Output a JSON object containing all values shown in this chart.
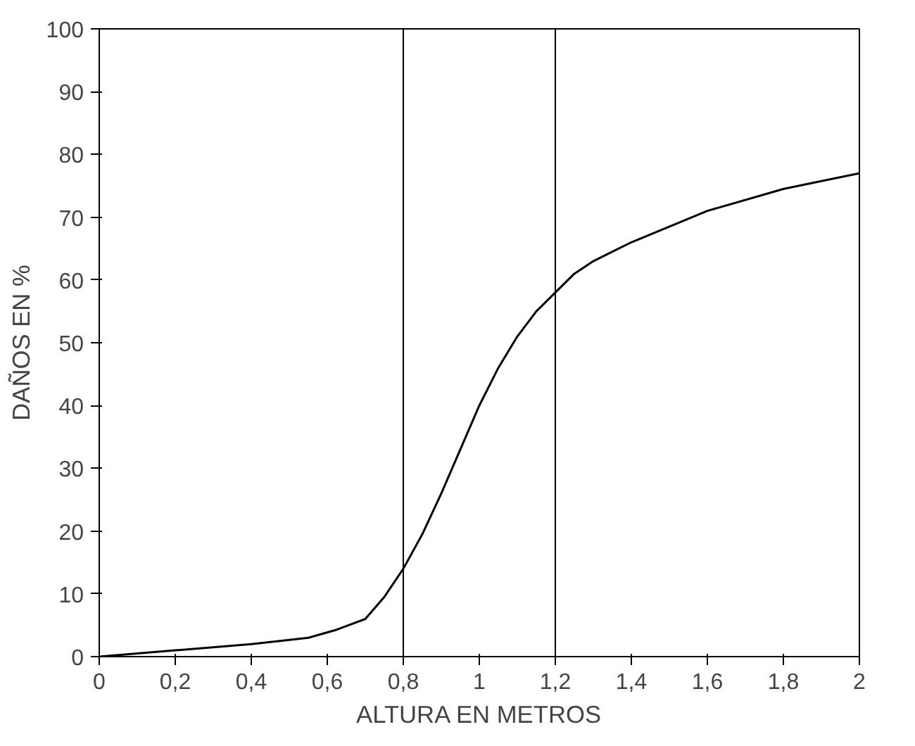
{
  "chart_data": {
    "type": "line",
    "xlabel": "ALTURA EN METROS",
    "ylabel": "DAÑOS EN %",
    "x": [
      0,
      0.2,
      0.4,
      0.55,
      0.62,
      0.7,
      0.75,
      0.8,
      0.85,
      0.9,
      0.95,
      1.0,
      1.05,
      1.1,
      1.15,
      1.2,
      1.25,
      1.3,
      1.35,
      1.4,
      1.6,
      1.8,
      2.0
    ],
    "series": [
      {
        "color": "#000000",
        "values": [
          0,
          1,
          2,
          3,
          4.2,
          6,
          9.5,
          14,
          19.5,
          26,
          33,
          40,
          46,
          51,
          55,
          58,
          61,
          63,
          64.5,
          66,
          71,
          74.5,
          77
        ]
      }
    ],
    "xlim": [
      0,
      2
    ],
    "ylim": [
      0,
      100
    ],
    "xticks": [
      0,
      {
        "value": 0.2,
        "label": "0,2"
      },
      {
        "value": 0.4,
        "label": "0,4"
      },
      {
        "value": 0.6,
        "label": "0,6"
      },
      {
        "value": 0.8,
        "label": "0,8"
      },
      1,
      {
        "value": 1.2,
        "label": "1,2"
      },
      {
        "value": 1.4,
        "label": "1,4"
      },
      {
        "value": 1.6,
        "label": "1,6"
      },
      {
        "value": 1.8,
        "label": "1,8"
      },
      2
    ],
    "yticks": [
      0,
      10,
      20,
      30,
      40,
      50,
      60,
      70,
      80,
      90,
      100
    ],
    "ref_lines": [
      {
        "axis": "x",
        "value": 0.8,
        "color": "#000000"
      },
      {
        "axis": "x",
        "value": 1.2,
        "color": "#000000"
      }
    ],
    "grid": false,
    "marker": "none",
    "line_style": "solid"
  }
}
